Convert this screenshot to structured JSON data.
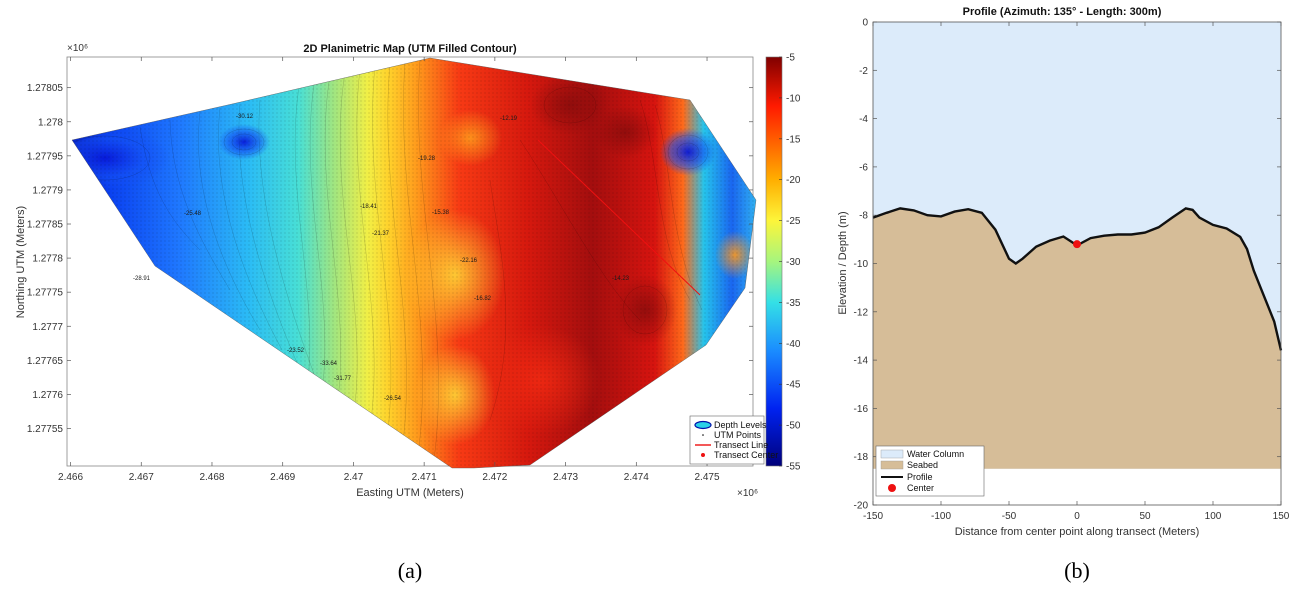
{
  "panel_labels": {
    "a": "(a)",
    "b": "(b)"
  },
  "colors": {
    "water": "#dcebfa",
    "seabed": "#d6bd98",
    "profile": "#111111",
    "center": "#ee1111",
    "transect": "#ee1111"
  },
  "contour_labels": [
    "-30.12",
    "-25.48",
    "-33.64",
    "-31.77",
    "-23.52",
    "-18.41",
    "-12.19",
    "-15.38",
    "-21.37",
    "-19.28",
    "-22.16",
    "-26.54",
    "-16.82",
    "-14.23",
    "-28.91"
  ],
  "chart_data": [
    {
      "type": "heatmap",
      "title": "2D Planimetric Map (UTM Filled Contour)",
      "xlabel": "Easting UTM (Meters)",
      "ylabel": "Northing UTM (Meters)",
      "x_exponent": "×10⁶",
      "y_exponent": "×10⁶",
      "xlim": [
        2.46595,
        2.47565
      ],
      "ylim": [
        1.277495,
        1.278095
      ],
      "x_ticks": [
        2.466,
        2.467,
        2.468,
        2.469,
        2.47,
        2.471,
        2.472,
        2.473,
        2.474,
        2.475
      ],
      "x_tick_labels": [
        "2.466",
        "2.467",
        "2.468",
        "2.469",
        "2.47",
        "2.471",
        "2.472",
        "2.473",
        "2.474",
        "2.475"
      ],
      "y_ticks": [
        1.27755,
        1.2776,
        1.27765,
        1.2777,
        1.27775,
        1.2778,
        1.27785,
        1.2779,
        1.27795,
        1.278,
        1.27805
      ],
      "y_tick_labels": [
        "1.27755",
        "1.2776",
        "1.27765",
        "1.2777",
        "1.27775",
        "1.2778",
        "1.27785",
        "1.2779",
        "1.27795",
        "1.278",
        "1.27805"
      ],
      "colorbar": {
        "range": [
          -55,
          -5
        ],
        "ticks": [
          -5,
          -10,
          -15,
          -20,
          -25,
          -30,
          -35,
          -40,
          -45,
          -50,
          -55
        ],
        "tick_labels": [
          "-5",
          "-10",
          "-15",
          "-20",
          "-25",
          "-30",
          "-35",
          "-40",
          "-45",
          "-50",
          "-55"
        ],
        "colormap": "jet"
      },
      "legend": {
        "position": "bottom-right",
        "entries": [
          "Depth Levels",
          "UTM Points",
          "Transect Line",
          "Transect Center"
        ]
      }
    },
    {
      "type": "area",
      "title": "Profile (Azimuth: 135° - Length: 300m)",
      "xlabel": "Distance from center point along transect (Meters)",
      "ylabel": "Elevation / Depth (m)",
      "xlim": [
        -150,
        150
      ],
      "ylim": [
        -20,
        0
      ],
      "x_ticks": [
        -150,
        -100,
        -50,
        0,
        50,
        100,
        150
      ],
      "x_tick_labels": [
        "-150",
        "-100",
        "-50",
        "0",
        "50",
        "100",
        "150"
      ],
      "y_ticks": [
        -20,
        -18,
        -16,
        -14,
        -12,
        -10,
        -8,
        -6,
        -4,
        -2,
        0
      ],
      "y_tick_labels": [
        "-20",
        "-18",
        "-16",
        "-14",
        "-12",
        "-10",
        "-8",
        "-6",
        "-4",
        "-2",
        "0"
      ],
      "seabed_bottom": -18.5,
      "profile_x": [
        -150,
        -140,
        -130,
        -120,
        -110,
        -100,
        -90,
        -80,
        -70,
        -60,
        -50,
        -45,
        -40,
        -30,
        -20,
        -10,
        0,
        10,
        20,
        30,
        40,
        50,
        60,
        70,
        80,
        85,
        90,
        100,
        110,
        120,
        125,
        130,
        135,
        140,
        145,
        150
      ],
      "profile_y": [
        -8.1,
        -7.9,
        -7.72,
        -7.8,
        -8.0,
        -8.05,
        -7.85,
        -7.75,
        -7.9,
        -8.6,
        -9.8,
        -10.0,
        -9.8,
        -9.3,
        -9.05,
        -8.88,
        -9.25,
        -8.95,
        -8.85,
        -8.8,
        -8.8,
        -8.72,
        -8.5,
        -8.1,
        -7.72,
        -7.78,
        -8.1,
        -8.4,
        -8.55,
        -8.9,
        -9.4,
        -10.3,
        -11.0,
        -11.7,
        -12.4,
        -13.6
      ],
      "center": {
        "x": 0,
        "y": -9.2
      },
      "legend": {
        "position": "bottom-left",
        "entries": [
          "Water Column",
          "Seabed",
          "Profile",
          "Center"
        ]
      }
    }
  ]
}
